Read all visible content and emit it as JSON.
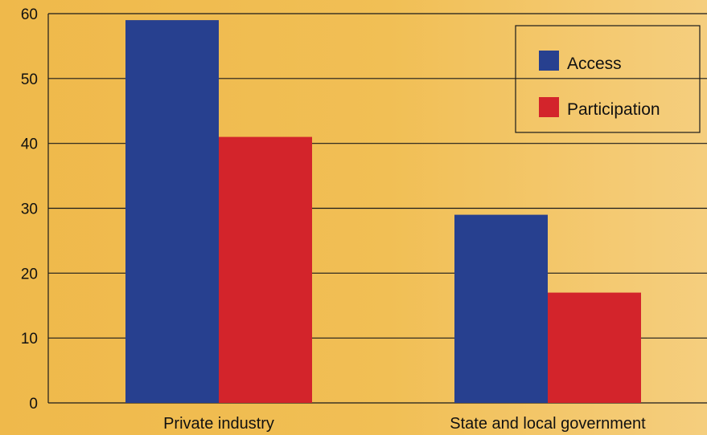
{
  "chart_data": {
    "type": "bar",
    "categories": [
      "Private industry",
      "State and local government"
    ],
    "series": [
      {
        "name": "Access",
        "values": [
          59,
          29
        ],
        "color": "#27408f"
      },
      {
        "name": "Participation",
        "values": [
          41,
          17
        ],
        "color": "#d3242b"
      }
    ],
    "ylim": [
      0,
      60
    ],
    "yticks": [
      "0",
      "10",
      "20",
      "30",
      "40",
      "50",
      "60"
    ],
    "title": "",
    "xlabel": "",
    "ylabel": "",
    "grid": true,
    "legend_position": "top-right"
  }
}
